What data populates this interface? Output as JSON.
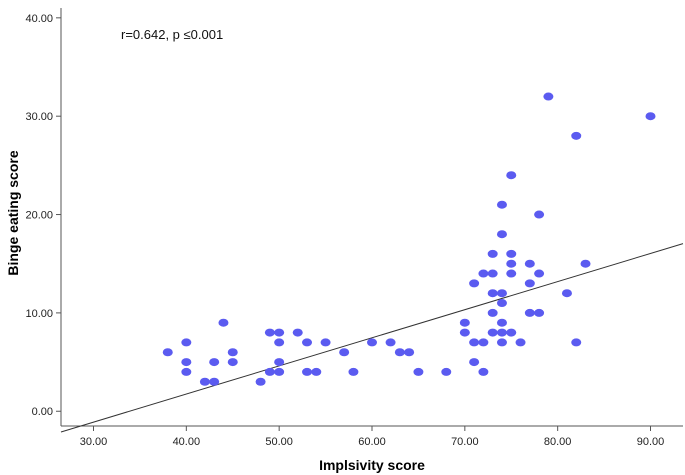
{
  "chart_data": {
    "type": "scatter",
    "title": "",
    "xlabel": "Implsivity score",
    "ylabel": "Binge eating score",
    "annotation": "r=0.642, p ≤0.001",
    "xlim": [
      26.5,
      93.5
    ],
    "ylim": [
      -1.5,
      41
    ],
    "x_ticks": [
      "30.00",
      "40.00",
      "50.00",
      "60.00",
      "70.00",
      "80.00",
      "90.00"
    ],
    "y_ticks": [
      "0.00",
      "10.00",
      "20.00",
      "30.00",
      "40.00"
    ],
    "grid": false,
    "legend": "none",
    "point_color": "#5b5bf0",
    "line_color": "#333333",
    "fit_line": {
      "slope": 0.2858,
      "intercept": -9.68
    },
    "points": [
      {
        "x": 38,
        "y": 6
      },
      {
        "x": 40,
        "y": 7
      },
      {
        "x": 40,
        "y": 5
      },
      {
        "x": 40,
        "y": 4
      },
      {
        "x": 42,
        "y": 3
      },
      {
        "x": 43,
        "y": 3
      },
      {
        "x": 43,
        "y": 5
      },
      {
        "x": 44,
        "y": 9
      },
      {
        "x": 45,
        "y": 6
      },
      {
        "x": 45,
        "y": 5
      },
      {
        "x": 48,
        "y": 3
      },
      {
        "x": 49,
        "y": 8
      },
      {
        "x": 49,
        "y": 4
      },
      {
        "x": 50,
        "y": 8
      },
      {
        "x": 50,
        "y": 7
      },
      {
        "x": 50,
        "y": 5
      },
      {
        "x": 50,
        "y": 4
      },
      {
        "x": 52,
        "y": 8
      },
      {
        "x": 53,
        "y": 7
      },
      {
        "x": 53,
        "y": 4
      },
      {
        "x": 54,
        "y": 4
      },
      {
        "x": 55,
        "y": 7
      },
      {
        "x": 57,
        "y": 6
      },
      {
        "x": 58,
        "y": 4
      },
      {
        "x": 60,
        "y": 7
      },
      {
        "x": 62,
        "y": 7
      },
      {
        "x": 63,
        "y": 6
      },
      {
        "x": 64,
        "y": 6
      },
      {
        "x": 65,
        "y": 4
      },
      {
        "x": 68,
        "y": 4
      },
      {
        "x": 70,
        "y": 9
      },
      {
        "x": 70,
        "y": 8
      },
      {
        "x": 71,
        "y": 13
      },
      {
        "x": 71,
        "y": 7
      },
      {
        "x": 71,
        "y": 5
      },
      {
        "x": 72,
        "y": 14
      },
      {
        "x": 72,
        "y": 7
      },
      {
        "x": 72,
        "y": 4
      },
      {
        "x": 73,
        "y": 16
      },
      {
        "x": 73,
        "y": 14
      },
      {
        "x": 73,
        "y": 12
      },
      {
        "x": 73,
        "y": 10
      },
      {
        "x": 73,
        "y": 8
      },
      {
        "x": 74,
        "y": 21
      },
      {
        "x": 74,
        "y": 18
      },
      {
        "x": 74,
        "y": 12
      },
      {
        "x": 74,
        "y": 11
      },
      {
        "x": 74,
        "y": 9
      },
      {
        "x": 74,
        "y": 8
      },
      {
        "x": 74,
        "y": 7
      },
      {
        "x": 75,
        "y": 24
      },
      {
        "x": 75,
        "y": 16
      },
      {
        "x": 75,
        "y": 15
      },
      {
        "x": 75,
        "y": 14
      },
      {
        "x": 75,
        "y": 8
      },
      {
        "x": 76,
        "y": 7
      },
      {
        "x": 77,
        "y": 15
      },
      {
        "x": 77,
        "y": 13
      },
      {
        "x": 77,
        "y": 10
      },
      {
        "x": 78,
        "y": 20
      },
      {
        "x": 78,
        "y": 14
      },
      {
        "x": 78,
        "y": 10
      },
      {
        "x": 79,
        "y": 32
      },
      {
        "x": 81,
        "y": 12
      },
      {
        "x": 82,
        "y": 28
      },
      {
        "x": 82,
        "y": 7
      },
      {
        "x": 83,
        "y": 15
      },
      {
        "x": 90,
        "y": 30
      }
    ]
  }
}
